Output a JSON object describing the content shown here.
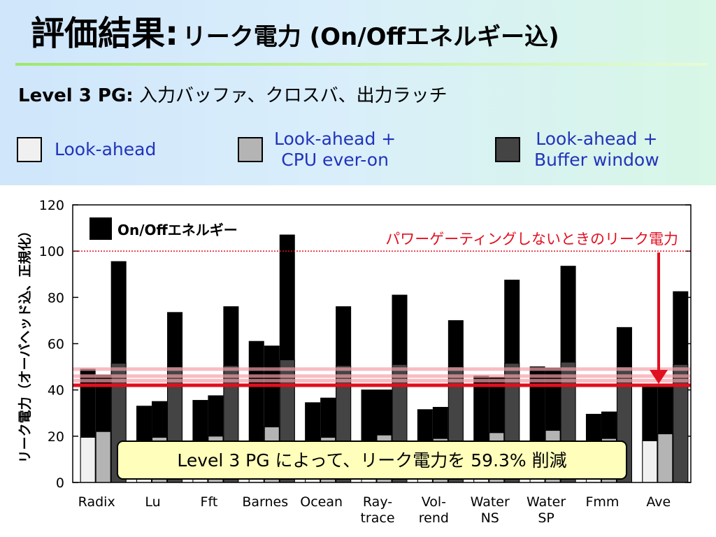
{
  "slide": {
    "title_main": "評価結果:",
    "title_sub": "リーク電力 (On/Offエネルギー込)",
    "subtitle_bold": "Level 3 PG:",
    "subtitle_rest": "入力バッファ、クロスバ、出力ラッチ"
  },
  "legend": [
    {
      "line1": "Look-ahead",
      "line2": "",
      "color": "#f0f0f0"
    },
    {
      "line1": "Look-ahead +",
      "line2": "CPU ever-on",
      "color": "#b4b4b4"
    },
    {
      "line1": "Look-ahead +",
      "line2": "Buffer window",
      "color": "#444444"
    }
  ],
  "chart_data": {
    "type": "bar",
    "ylabel": "リーク電力（オーバヘッド込、正規化）",
    "ylim": [
      0,
      120
    ],
    "yticks": [
      0,
      20,
      40,
      60,
      80,
      100,
      120
    ],
    "categories": [
      {
        "line1": "Radix",
        "line2": ""
      },
      {
        "line1": "Lu",
        "line2": ""
      },
      {
        "line1": "Fft",
        "line2": ""
      },
      {
        "line1": "Barnes",
        "line2": ""
      },
      {
        "line1": "Ocean",
        "line2": ""
      },
      {
        "line1": "Ray-",
        "line2": "trace"
      },
      {
        "line1": "Vol-",
        "line2": "rend"
      },
      {
        "line1": "Water",
        "line2": "NS"
      },
      {
        "line1": "Water",
        "line2": "SP"
      },
      {
        "line1": "Fmm",
        "line2": ""
      },
      {
        "line1": "Ave",
        "line2": ""
      }
    ],
    "series": [
      {
        "base": [
          19.5,
          2,
          2,
          2,
          2,
          2,
          2,
          2,
          2,
          2,
          18
        ],
        "total": [
          49,
          33,
          35.5,
          61,
          34.5,
          40,
          31.5,
          46,
          50,
          29.5,
          42
        ]
      },
      {
        "base": [
          22,
          19.5,
          20,
          24,
          19.5,
          20.5,
          19,
          21.5,
          22.5,
          19,
          21
        ],
        "total": [
          46.5,
          35,
          37.5,
          59,
          36.5,
          40,
          32.5,
          45.5,
          49.5,
          30.5,
          42
        ]
      },
      {
        "base": [
          51.5,
          50,
          50.5,
          53,
          50.5,
          51,
          50,
          51.5,
          52,
          50,
          51
        ],
        "total": [
          95.5,
          73.5,
          76,
          107,
          76,
          81,
          70,
          87.5,
          93.5,
          67,
          82.5
        ]
      }
    ],
    "overlay_legend": "On/Offエネルギー",
    "overlay_color": "#000000",
    "reference_line": {
      "value": 100,
      "label": "パワーゲーティングしないときのリーク電力",
      "color": "#e01020"
    },
    "reduced_line": {
      "value": 42,
      "color": "#e01020"
    },
    "pink_lines": [
      49,
      46,
      44
    ],
    "callout": "Level 3 PG によって、リーク電力を 59.3% 削減"
  }
}
